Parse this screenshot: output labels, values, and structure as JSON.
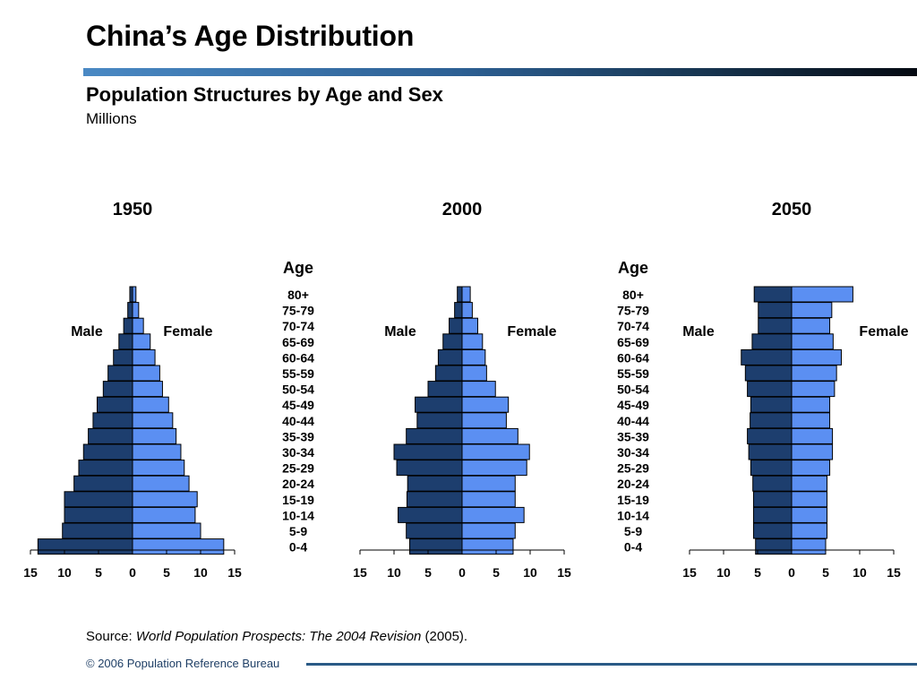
{
  "page": {
    "title": "China’s Age Distribution",
    "subtitle": "Population Structures by Age and Sex",
    "units": "Millions",
    "source_prefix": "Source: ",
    "source_title": "World Population Prospects: The 2004 Revision",
    "source_suffix": " (2005).",
    "copyright": "© 2006 Population Reference Bureau"
  },
  "colors": {
    "male": "#1d3e6e",
    "female": "#5b8ff2",
    "outline": "#000000",
    "title_bar_start": "#4a89c4",
    "title_bar_end": "#050a12"
  },
  "chart_data": [
    {
      "type": "bar",
      "orientation": "horizontal",
      "layout": "population-pyramid",
      "title": "1950",
      "age_axis_title": "",
      "categories": [
        "80+",
        "75-79",
        "70-74",
        "65-69",
        "60-64",
        "55-59",
        "50-54",
        "45-49",
        "40-44",
        "35-39",
        "30-34",
        "25-29",
        "20-24",
        "15-19",
        "10-14",
        "5-9",
        "0-4"
      ],
      "series": [
        {
          "name": "Male",
          "values": [
            0.4,
            0.7,
            1.3,
            2.0,
            2.8,
            3.6,
            4.3,
            5.2,
            5.8,
            6.5,
            7.2,
            7.9,
            8.6,
            10.0,
            10.0,
            10.3,
            13.9
          ]
        },
        {
          "name": "Female",
          "values": [
            0.5,
            0.9,
            1.6,
            2.6,
            3.3,
            4.0,
            4.4,
            5.3,
            5.9,
            6.4,
            7.1,
            7.6,
            8.3,
            9.5,
            9.2,
            10.0,
            13.4
          ]
        }
      ],
      "xlim": [
        -15,
        15
      ],
      "xticks": [
        {
          "value": -15,
          "label": "15"
        },
        {
          "value": -10,
          "label": "10"
        },
        {
          "value": -5,
          "label": "5"
        },
        {
          "value": 0,
          "label": "0"
        },
        {
          "value": 5,
          "label": "5"
        },
        {
          "value": 10,
          "label": "10"
        },
        {
          "value": 15,
          "label": "15"
        }
      ],
      "grid": false,
      "legend": "none"
    },
    {
      "type": "bar",
      "orientation": "horizontal",
      "layout": "population-pyramid",
      "title": "2000",
      "age_axis_title": "Age",
      "categories": [
        "80+",
        "75-79",
        "70-74",
        "65-69",
        "60-64",
        "55-59",
        "50-54",
        "45-49",
        "40-44",
        "35-39",
        "30-34",
        "25-29",
        "20-24",
        "15-19",
        "10-14",
        "5-9",
        "0-4"
      ],
      "series": [
        {
          "name": "Male",
          "values": [
            0.7,
            1.1,
            1.9,
            2.8,
            3.5,
            3.9,
            5.0,
            6.9,
            6.6,
            8.2,
            10.0,
            9.6,
            8.0,
            8.1,
            9.4,
            8.2,
            7.7
          ]
        },
        {
          "name": "Female",
          "values": [
            1.2,
            1.5,
            2.3,
            3.0,
            3.4,
            3.6,
            4.9,
            6.8,
            6.5,
            8.2,
            9.9,
            9.5,
            7.8,
            7.8,
            9.1,
            7.8,
            7.5
          ]
        }
      ],
      "xlim": [
        -15,
        15
      ],
      "xticks": [
        {
          "value": -15,
          "label": "15"
        },
        {
          "value": -10,
          "label": "10"
        },
        {
          "value": -5,
          "label": "5"
        },
        {
          "value": 0,
          "label": "0"
        },
        {
          "value": 5,
          "label": "5"
        },
        {
          "value": 10,
          "label": "10"
        },
        {
          "value": 15,
          "label": "15"
        }
      ],
      "grid": false,
      "legend": "none"
    },
    {
      "type": "bar",
      "orientation": "horizontal",
      "layout": "population-pyramid",
      "title": "2050",
      "age_axis_title": "Age",
      "categories": [
        "80+",
        "75-79",
        "70-74",
        "65-69",
        "60-64",
        "55-59",
        "50-54",
        "45-49",
        "40-44",
        "35-39",
        "30-34",
        "25-29",
        "20-24",
        "15-19",
        "10-14",
        "5-9",
        "0-4"
      ],
      "series": [
        {
          "name": "Male",
          "values": [
            5.5,
            4.9,
            4.9,
            5.8,
            7.4,
            6.8,
            6.5,
            6.0,
            6.1,
            6.5,
            6.3,
            6.0,
            5.7,
            5.6,
            5.6,
            5.6,
            5.3
          ]
        },
        {
          "name": "Female",
          "values": [
            9.0,
            5.9,
            5.6,
            6.1,
            7.3,
            6.6,
            6.3,
            5.6,
            5.6,
            6.0,
            6.0,
            5.6,
            5.2,
            5.2,
            5.2,
            5.2,
            5.0
          ]
        }
      ],
      "xlim": [
        -15,
        15
      ],
      "xticks": [
        {
          "value": -15,
          "label": "15"
        },
        {
          "value": -10,
          "label": "10"
        },
        {
          "value": -5,
          "label": "5"
        },
        {
          "value": 0,
          "label": "0"
        },
        {
          "value": 5,
          "label": "5"
        },
        {
          "value": 10,
          "label": "10"
        },
        {
          "value": 15,
          "label": "15"
        }
      ],
      "grid": false,
      "legend": "none"
    }
  ]
}
